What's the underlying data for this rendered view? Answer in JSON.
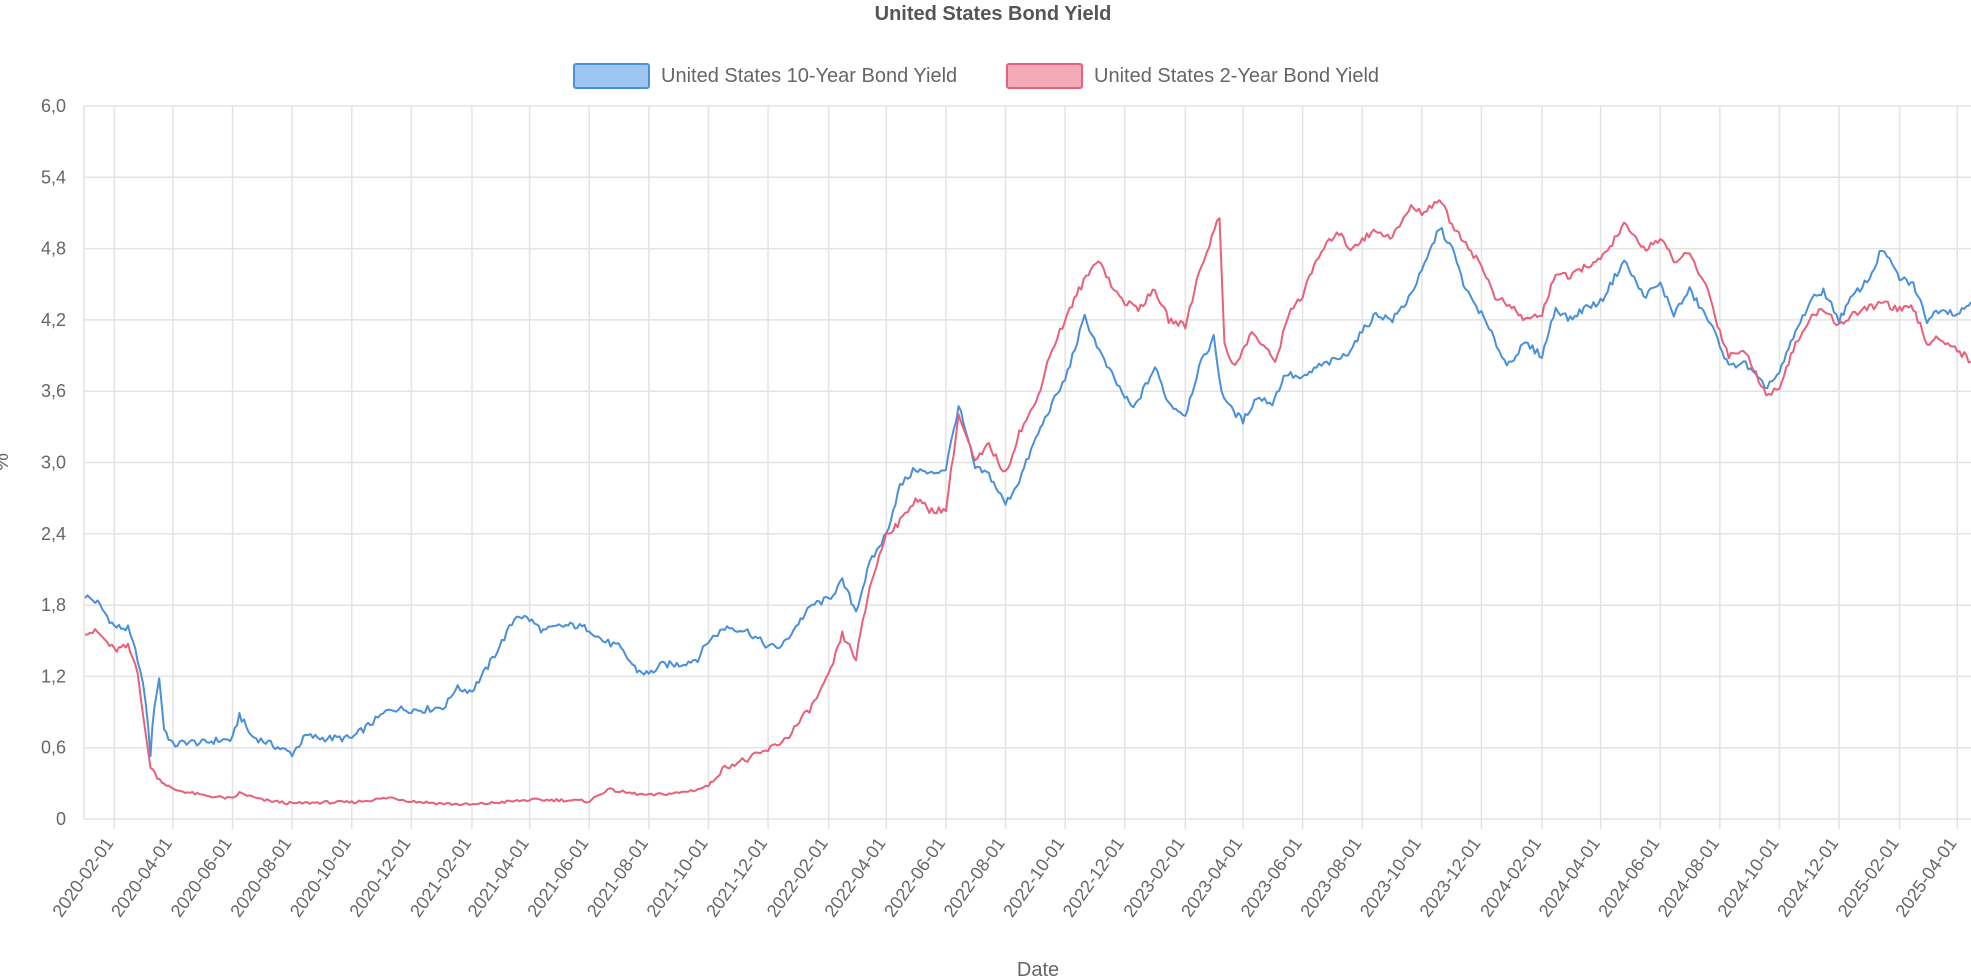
{
  "chart_data": {
    "type": "line",
    "title": "United States Bond Yield",
    "xlabel": "Date",
    "ylabel": "%",
    "ylim": [
      0,
      6
    ],
    "xlim": [
      "2020-01-01",
      "2025-04-15"
    ],
    "yticks": [
      "0",
      "0,6",
      "1,2",
      "1,8",
      "2,4",
      "3,0",
      "3,6",
      "4,2",
      "4,8",
      "5,4",
      "6,0"
    ],
    "xticks": [
      "2020-02-01",
      "2020-04-01",
      "2020-06-01",
      "2020-08-01",
      "2020-10-01",
      "2020-12-01",
      "2021-02-01",
      "2021-04-01",
      "2021-06-01",
      "2021-08-01",
      "2021-10-01",
      "2021-12-01",
      "2022-02-01",
      "2022-04-01",
      "2022-06-01",
      "2022-08-01",
      "2022-10-01",
      "2022-12-01",
      "2023-02-01",
      "2023-04-01",
      "2023-06-01",
      "2023-08-01",
      "2023-10-01",
      "2023-12-01",
      "2024-02-01",
      "2024-04-01",
      "2024-06-01",
      "2024-08-01",
      "2024-10-01",
      "2024-12-01",
      "2025-02-01",
      "2025-04-01"
    ],
    "grid": true,
    "legend_position": "top-center",
    "series": [
      {
        "name": "United States 10-Year Bond Yield",
        "color": "#4a90d9",
        "fill_color": "#9dc6f2",
        "points": [
          [
            "2020-01-02",
            1.88
          ],
          [
            "2020-01-15",
            1.82
          ],
          [
            "2020-02-01",
            1.62
          ],
          [
            "2020-02-15",
            1.6
          ],
          [
            "2020-02-25",
            1.35
          ],
          [
            "2020-03-04",
            1.0
          ],
          [
            "2020-03-09",
            0.55
          ],
          [
            "2020-03-13",
            0.96
          ],
          [
            "2020-03-18",
            1.18
          ],
          [
            "2020-03-23",
            0.76
          ],
          [
            "2020-04-01",
            0.62
          ],
          [
            "2020-04-15",
            0.65
          ],
          [
            "2020-05-01",
            0.64
          ],
          [
            "2020-05-15",
            0.66
          ],
          [
            "2020-06-01",
            0.67
          ],
          [
            "2020-06-08",
            0.88
          ],
          [
            "2020-06-20",
            0.7
          ],
          [
            "2020-07-10",
            0.63
          ],
          [
            "2020-08-01",
            0.55
          ],
          [
            "2020-08-15",
            0.7
          ],
          [
            "2020-09-01",
            0.68
          ],
          [
            "2020-10-01",
            0.68
          ],
          [
            "2020-10-20",
            0.8
          ],
          [
            "2020-11-10",
            0.93
          ],
          [
            "2020-12-01",
            0.92
          ],
          [
            "2020-12-15",
            0.92
          ],
          [
            "2021-01-05",
            0.95
          ],
          [
            "2021-01-15",
            1.1
          ],
          [
            "2021-02-01",
            1.08
          ],
          [
            "2021-02-15",
            1.25
          ],
          [
            "2021-03-01",
            1.45
          ],
          [
            "2021-03-19",
            1.72
          ],
          [
            "2021-04-01",
            1.68
          ],
          [
            "2021-04-15",
            1.58
          ],
          [
            "2021-05-01",
            1.62
          ],
          [
            "2021-05-15",
            1.63
          ],
          [
            "2021-06-01",
            1.6
          ],
          [
            "2021-06-15",
            1.5
          ],
          [
            "2021-07-01",
            1.45
          ],
          [
            "2021-07-20",
            1.25
          ],
          [
            "2021-08-01",
            1.22
          ],
          [
            "2021-08-15",
            1.3
          ],
          [
            "2021-09-01",
            1.3
          ],
          [
            "2021-09-20",
            1.35
          ],
          [
            "2021-10-01",
            1.5
          ],
          [
            "2021-10-20",
            1.62
          ],
          [
            "2021-11-10",
            1.58
          ],
          [
            "2021-12-01",
            1.45
          ],
          [
            "2021-12-15",
            1.45
          ],
          [
            "2022-01-01",
            1.65
          ],
          [
            "2022-01-15",
            1.8
          ],
          [
            "2022-02-01",
            1.85
          ],
          [
            "2022-02-15",
            2.0
          ],
          [
            "2022-03-01",
            1.75
          ],
          [
            "2022-03-15",
            2.15
          ],
          [
            "2022-04-01",
            2.4
          ],
          [
            "2022-04-15",
            2.8
          ],
          [
            "2022-05-01",
            2.95
          ],
          [
            "2022-05-15",
            2.9
          ],
          [
            "2022-06-01",
            2.95
          ],
          [
            "2022-06-14",
            3.48
          ],
          [
            "2022-07-01",
            2.95
          ],
          [
            "2022-07-15",
            2.9
          ],
          [
            "2022-08-01",
            2.65
          ],
          [
            "2022-08-15",
            2.85
          ],
          [
            "2022-09-01",
            3.2
          ],
          [
            "2022-09-15",
            3.45
          ],
          [
            "2022-10-01",
            3.7
          ],
          [
            "2022-10-21",
            4.22
          ],
          [
            "2022-11-10",
            3.85
          ],
          [
            "2022-12-01",
            3.55
          ],
          [
            "2022-12-10",
            3.45
          ],
          [
            "2023-01-01",
            3.8
          ],
          [
            "2023-01-15",
            3.5
          ],
          [
            "2023-02-01",
            3.4
          ],
          [
            "2023-02-15",
            3.8
          ],
          [
            "2023-03-02",
            4.05
          ],
          [
            "2023-03-10",
            3.6
          ],
          [
            "2023-03-20",
            3.45
          ],
          [
            "2023-04-01",
            3.35
          ],
          [
            "2023-04-15",
            3.55
          ],
          [
            "2023-05-01",
            3.5
          ],
          [
            "2023-05-15",
            3.75
          ],
          [
            "2023-06-01",
            3.7
          ],
          [
            "2023-06-15",
            3.8
          ],
          [
            "2023-07-01",
            3.85
          ],
          [
            "2023-07-15",
            3.9
          ],
          [
            "2023-08-01",
            4.1
          ],
          [
            "2023-08-15",
            4.25
          ],
          [
            "2023-09-01",
            4.2
          ],
          [
            "2023-09-15",
            4.35
          ],
          [
            "2023-10-01",
            4.6
          ],
          [
            "2023-10-19",
            4.98
          ],
          [
            "2023-11-01",
            4.8
          ],
          [
            "2023-11-15",
            4.45
          ],
          [
            "2023-12-01",
            4.25
          ],
          [
            "2023-12-27",
            3.82
          ],
          [
            "2024-01-15",
            4.0
          ],
          [
            "2024-02-01",
            3.9
          ],
          [
            "2024-02-15",
            4.3
          ],
          [
            "2024-03-01",
            4.2
          ],
          [
            "2024-03-15",
            4.3
          ],
          [
            "2024-04-01",
            4.35
          ],
          [
            "2024-04-25",
            4.7
          ],
          [
            "2024-05-15",
            4.4
          ],
          [
            "2024-06-01",
            4.5
          ],
          [
            "2024-06-15",
            4.25
          ],
          [
            "2024-07-01",
            4.45
          ],
          [
            "2024-07-20",
            4.2
          ],
          [
            "2024-08-01",
            4.0
          ],
          [
            "2024-08-10",
            3.8
          ],
          [
            "2024-08-25",
            3.85
          ],
          [
            "2024-09-16",
            3.63
          ],
          [
            "2024-10-01",
            3.75
          ],
          [
            "2024-10-15",
            4.05
          ],
          [
            "2024-11-01",
            4.35
          ],
          [
            "2024-11-15",
            4.45
          ],
          [
            "2024-12-01",
            4.2
          ],
          [
            "2024-12-15",
            4.4
          ],
          [
            "2025-01-01",
            4.55
          ],
          [
            "2025-01-14",
            4.8
          ],
          [
            "2025-02-01",
            4.55
          ],
          [
            "2025-02-15",
            4.5
          ],
          [
            "2025-03-01",
            4.2
          ],
          [
            "2025-03-15",
            4.3
          ],
          [
            "2025-04-01",
            4.25
          ],
          [
            "2025-04-15",
            4.35
          ]
        ]
      },
      {
        "name": "United States 2-Year Bond Yield",
        "color": "#e8607a",
        "fill_color": "#f5aab8",
        "points": [
          [
            "2020-01-02",
            1.58
          ],
          [
            "2020-01-15",
            1.57
          ],
          [
            "2020-02-01",
            1.42
          ],
          [
            "2020-02-15",
            1.45
          ],
          [
            "2020-02-25",
            1.25
          ],
          [
            "2020-03-04",
            0.7
          ],
          [
            "2020-03-09",
            0.45
          ],
          [
            "2020-03-16",
            0.35
          ],
          [
            "2020-03-23",
            0.3
          ],
          [
            "2020-04-01",
            0.25
          ],
          [
            "2020-05-01",
            0.2
          ],
          [
            "2020-06-01",
            0.17
          ],
          [
            "2020-06-08",
            0.22
          ],
          [
            "2020-07-01",
            0.16
          ],
          [
            "2020-08-01",
            0.13
          ],
          [
            "2020-09-01",
            0.14
          ],
          [
            "2020-10-01",
            0.14
          ],
          [
            "2020-11-10",
            0.18
          ],
          [
            "2020-12-01",
            0.15
          ],
          [
            "2021-01-01",
            0.13
          ],
          [
            "2021-02-01",
            0.12
          ],
          [
            "2021-03-01",
            0.14
          ],
          [
            "2021-04-01",
            0.16
          ],
          [
            "2021-05-01",
            0.16
          ],
          [
            "2021-06-01",
            0.15
          ],
          [
            "2021-06-20",
            0.25
          ],
          [
            "2021-07-10",
            0.22
          ],
          [
            "2021-08-01",
            0.2
          ],
          [
            "2021-09-01",
            0.22
          ],
          [
            "2021-09-20",
            0.25
          ],
          [
            "2021-10-01",
            0.28
          ],
          [
            "2021-10-20",
            0.45
          ],
          [
            "2021-11-10",
            0.5
          ],
          [
            "2021-12-01",
            0.58
          ],
          [
            "2021-12-20",
            0.68
          ],
          [
            "2022-01-15",
            0.95
          ],
          [
            "2022-02-01",
            1.2
          ],
          [
            "2022-02-15",
            1.55
          ],
          [
            "2022-03-01",
            1.35
          ],
          [
            "2022-03-15",
            1.95
          ],
          [
            "2022-04-01",
            2.4
          ],
          [
            "2022-04-15",
            2.5
          ],
          [
            "2022-05-01",
            2.7
          ],
          [
            "2022-05-15",
            2.6
          ],
          [
            "2022-06-01",
            2.6
          ],
          [
            "2022-06-14",
            3.4
          ],
          [
            "2022-07-01",
            3.0
          ],
          [
            "2022-07-15",
            3.15
          ],
          [
            "2022-08-01",
            2.9
          ],
          [
            "2022-08-15",
            3.25
          ],
          [
            "2022-09-01",
            3.5
          ],
          [
            "2022-09-15",
            3.9
          ],
          [
            "2022-10-01",
            4.2
          ],
          [
            "2022-10-15",
            4.45
          ],
          [
            "2022-11-04",
            4.72
          ],
          [
            "2022-11-20",
            4.45
          ],
          [
            "2022-12-01",
            4.35
          ],
          [
            "2022-12-15",
            4.3
          ],
          [
            "2023-01-01",
            4.45
          ],
          [
            "2023-01-15",
            4.2
          ],
          [
            "2023-02-01",
            4.15
          ],
          [
            "2023-02-15",
            4.6
          ],
          [
            "2023-03-08",
            5.07
          ],
          [
            "2023-03-13",
            4.0
          ],
          [
            "2023-03-24",
            3.8
          ],
          [
            "2023-04-10",
            4.1
          ],
          [
            "2023-05-04",
            3.85
          ],
          [
            "2023-05-20",
            4.3
          ],
          [
            "2023-06-01",
            4.4
          ],
          [
            "2023-06-15",
            4.7
          ],
          [
            "2023-07-06",
            4.95
          ],
          [
            "2023-07-20",
            4.8
          ],
          [
            "2023-08-01",
            4.88
          ],
          [
            "2023-08-15",
            4.95
          ],
          [
            "2023-09-01",
            4.9
          ],
          [
            "2023-09-20",
            5.15
          ],
          [
            "2023-10-01",
            5.1
          ],
          [
            "2023-10-19",
            5.22
          ],
          [
            "2023-11-01",
            5.0
          ],
          [
            "2023-11-15",
            4.85
          ],
          [
            "2023-12-01",
            4.65
          ],
          [
            "2023-12-15",
            4.4
          ],
          [
            "2024-01-01",
            4.3
          ],
          [
            "2024-01-15",
            4.2
          ],
          [
            "2024-02-01",
            4.25
          ],
          [
            "2024-02-15",
            4.6
          ],
          [
            "2024-03-01",
            4.55
          ],
          [
            "2024-03-15",
            4.65
          ],
          [
            "2024-04-01",
            4.7
          ],
          [
            "2024-04-25",
            5.0
          ],
          [
            "2024-05-15",
            4.8
          ],
          [
            "2024-06-01",
            4.88
          ],
          [
            "2024-06-15",
            4.7
          ],
          [
            "2024-07-01",
            4.75
          ],
          [
            "2024-07-20",
            4.45
          ],
          [
            "2024-08-01",
            4.1
          ],
          [
            "2024-08-10",
            3.9
          ],
          [
            "2024-08-25",
            3.95
          ],
          [
            "2024-09-20",
            3.55
          ],
          [
            "2024-10-01",
            3.65
          ],
          [
            "2024-10-15",
            3.95
          ],
          [
            "2024-11-01",
            4.2
          ],
          [
            "2024-11-15",
            4.3
          ],
          [
            "2024-12-01",
            4.15
          ],
          [
            "2024-12-15",
            4.25
          ],
          [
            "2025-01-01",
            4.3
          ],
          [
            "2025-01-15",
            4.35
          ],
          [
            "2025-02-01",
            4.28
          ],
          [
            "2025-02-15",
            4.3
          ],
          [
            "2025-03-01",
            4.0
          ],
          [
            "2025-03-15",
            4.05
          ],
          [
            "2025-04-01",
            3.95
          ],
          [
            "2025-04-15",
            3.85
          ]
        ]
      }
    ]
  }
}
